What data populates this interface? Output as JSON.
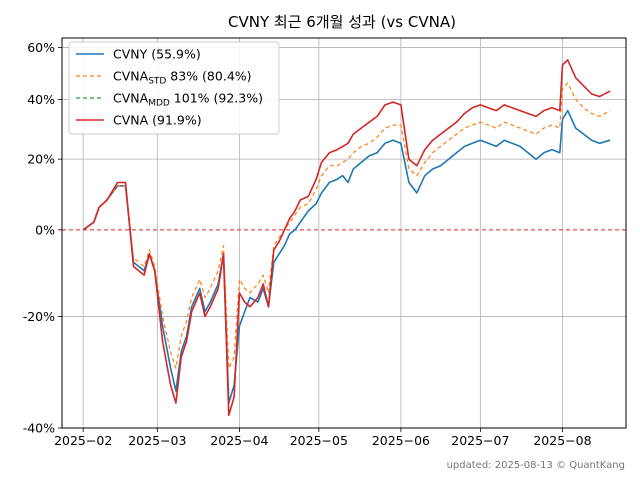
{
  "chart_data": {
    "type": "line",
    "title": "CVNY 최근 6개월 성과 (vs CVNA)",
    "xlabel": "",
    "ylabel": "",
    "ylim": [
      -40,
      64
    ],
    "y_scale": "log1p",
    "x_range": [
      "2025-01-24",
      "2025-08-25"
    ],
    "x_ticks": [
      {
        "date": "2025-02-01",
        "label": "2025−02"
      },
      {
        "date": "2025-03-01",
        "label": "2025−03"
      },
      {
        "date": "2025-04-01",
        "label": "2025−04"
      },
      {
        "date": "2025-05-01",
        "label": "2025−05"
      },
      {
        "date": "2025-06-01",
        "label": "2025−06"
      },
      {
        "date": "2025-07-01",
        "label": "2025−07"
      },
      {
        "date": "2025-08-01",
        "label": "2025−08"
      }
    ],
    "y_ticks": [
      {
        "value": 60,
        "label": "60%"
      },
      {
        "value": 40,
        "label": "40%"
      },
      {
        "value": 20,
        "label": "20%"
      },
      {
        "value": 0,
        "label": "0%"
      },
      {
        "value": -20,
        "label": "-20%"
      },
      {
        "value": -40,
        "label": "-40%"
      }
    ],
    "grid": true,
    "zero_line_color": "#d62728",
    "legend_position": "top-left",
    "legend": [
      {
        "key": "cvny",
        "pre": "CVNY (55.9%)",
        "sub": "",
        "post": ""
      },
      {
        "key": "std",
        "pre": "CVNA",
        "sub": "STD",
        "post": " 83% (80.4%)"
      },
      {
        "key": "mdd",
        "pre": "CVNA",
        "sub": "MDD",
        "post": " 101% (92.3%)"
      },
      {
        "key": "cvna",
        "pre": "CVNA (91.9%)",
        "sub": "",
        "post": ""
      }
    ],
    "x": [
      "2025-02-01",
      "2025-02-05",
      "2025-02-07",
      "2025-02-10",
      "2025-02-14",
      "2025-02-17",
      "2025-02-20",
      "2025-02-24",
      "2025-02-26",
      "2025-02-28",
      "2025-03-03",
      "2025-03-06",
      "2025-03-08",
      "2025-03-10",
      "2025-03-12",
      "2025-03-14",
      "2025-03-17",
      "2025-03-19",
      "2025-03-21",
      "2025-03-24",
      "2025-03-26",
      "2025-03-28",
      "2025-03-30",
      "2025-04-01",
      "2025-04-03",
      "2025-04-05",
      "2025-04-08",
      "2025-04-10",
      "2025-04-12",
      "2025-04-14",
      "2025-04-16",
      "2025-04-18",
      "2025-04-20",
      "2025-04-22",
      "2025-04-24",
      "2025-04-27",
      "2025-04-30",
      "2025-05-02",
      "2025-05-05",
      "2025-05-08",
      "2025-05-10",
      "2025-05-12",
      "2025-05-14",
      "2025-05-17",
      "2025-05-20",
      "2025-05-23",
      "2025-05-26",
      "2025-05-29",
      "2025-06-01",
      "2025-06-04",
      "2025-06-07",
      "2025-06-10",
      "2025-06-13",
      "2025-06-16",
      "2025-06-19",
      "2025-06-22",
      "2025-06-25",
      "2025-06-28",
      "2025-07-01",
      "2025-07-04",
      "2025-07-07",
      "2025-07-10",
      "2025-07-13",
      "2025-07-16",
      "2025-07-19",
      "2025-07-22",
      "2025-07-25",
      "2025-07-28",
      "2025-07-31",
      "2025-08-01",
      "2025-08-03",
      "2025-08-06",
      "2025-08-09",
      "2025-08-12",
      "2025-08-15",
      "2025-08-19"
    ],
    "series": [
      {
        "key": "cvny",
        "name": "CVNY (55.9%)",
        "color": "#1f77b4",
        "dash": "",
        "width": 1.6,
        "values": [
          0,
          2,
          6,
          8,
          12,
          12,
          -8,
          -10,
          -6,
          -10,
          -22,
          -30,
          -34,
          -27,
          -24,
          -18,
          -14,
          -19,
          -17,
          -13,
          -6,
          -36,
          -33,
          -22,
          -19,
          -16,
          -17,
          -14,
          -18,
          -8,
          -6,
          -4,
          -1,
          0,
          2,
          5,
          7,
          10,
          13,
          14,
          15,
          13,
          17,
          19,
          21,
          22,
          25,
          26,
          25,
          13,
          10,
          15,
          17,
          18,
          20,
          22,
          24,
          25,
          26,
          25,
          24,
          26,
          25,
          24,
          22,
          20,
          22,
          23,
          22,
          33,
          36,
          30,
          28,
          26,
          25,
          26
        ]
      },
      {
        "key": "std",
        "name": "CVNA_STD 83% (80.4%)",
        "color": "#ff7f0e",
        "dash": "4,3",
        "width": 1.2,
        "values": [
          0,
          2,
          6,
          8,
          12,
          12,
          -7,
          -9,
          -5,
          -9,
          -20,
          -27,
          -30,
          -24,
          -21,
          -16,
          -12,
          -16,
          -14,
          -10,
          -4,
          -30,
          -28,
          -12,
          -14,
          -15,
          -13,
          -11,
          -15,
          -4,
          -2,
          0,
          2,
          4,
          6,
          7,
          11,
          15,
          18,
          18,
          19,
          20,
          22,
          24,
          25,
          27,
          30,
          31,
          31,
          17,
          15,
          19,
          22,
          24,
          26,
          28,
          30,
          31,
          32,
          31,
          30,
          32,
          31,
          30,
          29,
          28,
          30,
          31,
          30,
          44,
          46,
          40,
          37,
          35,
          34,
          36
        ]
      },
      {
        "key": "mdd",
        "name": "CVNA_MDD 101% (92.3%)",
        "color": "#2ca02c",
        "dash": "4,3",
        "width": 1.2,
        "values": [
          0,
          2,
          6,
          8,
          13,
          13,
          -9,
          -11,
          -6,
          -10,
          -25,
          -33,
          -36,
          -28,
          -25,
          -19,
          -15,
          -20,
          -18,
          -14,
          -6,
          -38,
          -35,
          -15,
          -17,
          -18,
          -16,
          -13,
          -18,
          -5,
          -3,
          0,
          3,
          5,
          8,
          9,
          14,
          19,
          22,
          23,
          24,
          25,
          28,
          30,
          32,
          34,
          38,
          39,
          38,
          20,
          18,
          23,
          26,
          28,
          30,
          32,
          35,
          37,
          38,
          37,
          36,
          38,
          37,
          36,
          35,
          34,
          36,
          37,
          36,
          53,
          55,
          48,
          45,
          42,
          41,
          43
        ]
      },
      {
        "key": "cvna",
        "name": "CVNA (91.9%)",
        "color": "#d62728",
        "dash": "",
        "width": 1.6,
        "values": [
          0,
          2,
          6,
          8,
          13,
          13,
          -9,
          -11,
          -6,
          -10,
          -25,
          -33,
          -36,
          -28,
          -25,
          -19,
          -15,
          -20,
          -18,
          -14,
          -6,
          -38,
          -35,
          -15,
          -17,
          -18,
          -16,
          -13,
          -18,
          -5,
          -3,
          0,
          3,
          5,
          8,
          9,
          14,
          19,
          22,
          23,
          24,
          25,
          28,
          30,
          32,
          34,
          38,
          39,
          38,
          20,
          18,
          23,
          26,
          28,
          30,
          32,
          35,
          37,
          38,
          37,
          36,
          38,
          37,
          36,
          35,
          34,
          36,
          37,
          36,
          53,
          55,
          48,
          45,
          42,
          41,
          43
        ]
      }
    ]
  },
  "footer": {
    "text": "updated: 2025-08-13 © QuantKang"
  }
}
